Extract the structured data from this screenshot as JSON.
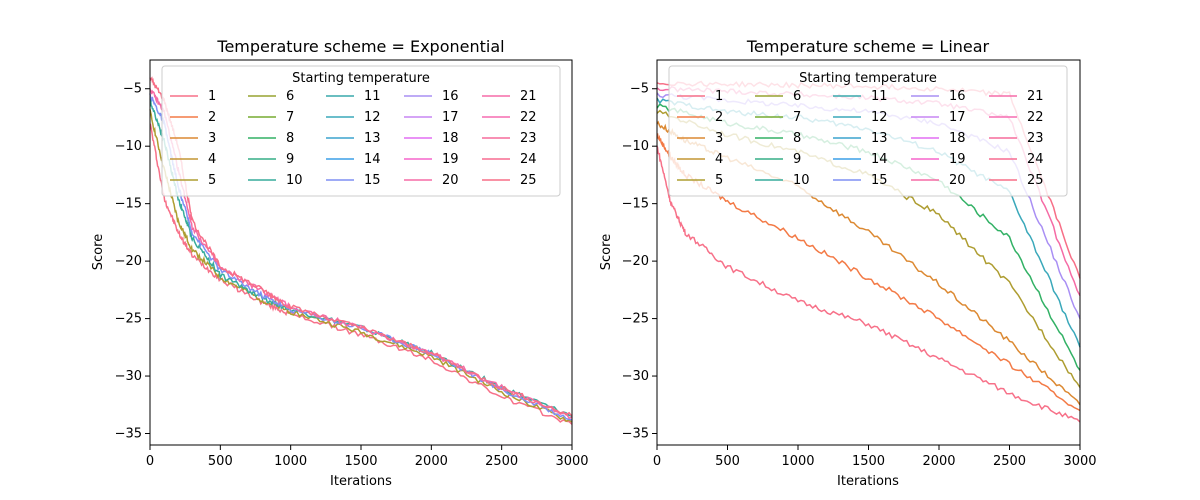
{
  "figure": {
    "legend_title": "Starting temperature"
  },
  "series_colors": [
    "#f77189",
    "#f37a46",
    "#dc8932",
    "#c39533",
    "#ae9d31",
    "#97a431",
    "#77ab31",
    "#32b165",
    "#35ae86",
    "#37ac9c",
    "#39a9ab",
    "#3aa8ba",
    "#3ca4ce",
    "#3b9fe7",
    "#7e8ff4",
    "#a98ff4",
    "#c785f3",
    "#e26ff4",
    "#f565cc",
    "#f56ba5",
    "#f56ba8",
    "#f66bb1",
    "#f66c9c",
    "#f76c91",
    "#f76f87"
  ],
  "chart_data": [
    {
      "type": "line",
      "title": "Temperature scheme = Exponential",
      "xlabel": "Iterations",
      "ylabel": "Score",
      "xlim": [
        0,
        3000
      ],
      "ylim": [
        -36,
        -2.5
      ],
      "xticks": [
        0,
        500,
        1000,
        1500,
        2000,
        2500,
        3000
      ],
      "yticks": [
        -5,
        -10,
        -15,
        -20,
        -25,
        -30,
        -35
      ],
      "legend_position": "top-right",
      "legend_entries": [
        "1",
        "2",
        "3",
        "4",
        "5",
        "6",
        "7",
        "8",
        "9",
        "10",
        "11",
        "12",
        "13",
        "14",
        "15",
        "16",
        "17",
        "18",
        "19",
        "20",
        "21",
        "22",
        "23",
        "24",
        "25"
      ],
      "series": [
        {
          "name": "1",
          "x": [
            0,
            100,
            200,
            300,
            500,
            800,
            1000,
            1500,
            2000,
            2500,
            3000
          ],
          "y": [
            -8,
            -14.5,
            -17.5,
            -19.5,
            -21.6,
            -23.6,
            -24.6,
            -26.4,
            -28.6,
            -31.8,
            -34.2
          ]
        },
        {
          "name": "5",
          "x": [
            0,
            100,
            200,
            300,
            500,
            800,
            1000,
            1500,
            2000,
            2500,
            3000
          ],
          "y": [
            -7,
            -12,
            -16.5,
            -19,
            -21.4,
            -23.4,
            -24.4,
            -26.2,
            -28.3,
            -31.4,
            -34
          ]
        },
        {
          "name": "10",
          "x": [
            0,
            100,
            200,
            300,
            500,
            800,
            1000,
            1500,
            2000,
            2500,
            3000
          ],
          "y": [
            -6,
            -9.5,
            -14.5,
            -18,
            -21.2,
            -23.2,
            -24.2,
            -25.8,
            -28,
            -31,
            -33.5
          ]
        },
        {
          "name": "15",
          "x": [
            0,
            100,
            200,
            300,
            500,
            800,
            1000,
            1500,
            2000,
            2500,
            3000
          ],
          "y": [
            -5.5,
            -8,
            -13.5,
            -17.5,
            -20.8,
            -23,
            -24.2,
            -25.8,
            -28,
            -31.2,
            -33.8
          ]
        },
        {
          "name": "20",
          "x": [
            0,
            100,
            200,
            300,
            500,
            800,
            1000,
            1500,
            2000,
            2500,
            3000
          ],
          "y": [
            -5,
            -7,
            -12,
            -17,
            -20.6,
            -22.6,
            -24,
            -25.8,
            -28,
            -31,
            -33.6
          ]
        },
        {
          "name": "25",
          "x": [
            0,
            100,
            200,
            300,
            500,
            800,
            1000,
            1500,
            2000,
            2500,
            3000
          ],
          "y": [
            -4,
            -6,
            -10,
            -16.5,
            -20.5,
            -22.5,
            -24,
            -25.8,
            -28,
            -31,
            -33.5
          ]
        }
      ]
    },
    {
      "type": "line",
      "title": "Temperature scheme = Linear",
      "xlabel": "Iterations",
      "ylabel": "Score",
      "xlim": [
        0,
        3000
      ],
      "ylim": [
        -36,
        -2.5
      ],
      "xticks": [
        0,
        500,
        1000,
        1500,
        2000,
        2500,
        3000
      ],
      "yticks": [
        -5,
        -10,
        -15,
        -20,
        -25,
        -30,
        -35
      ],
      "legend_position": "top-right",
      "legend_entries": [
        "1",
        "2",
        "3",
        "4",
        "5",
        "6",
        "7",
        "8",
        "9",
        "10",
        "11",
        "12",
        "13",
        "14",
        "15",
        "16",
        "17",
        "18",
        "19",
        "20",
        "21",
        "22",
        "23",
        "24",
        "25"
      ],
      "series": [
        {
          "name": "1",
          "x": [
            0,
            100,
            200,
            500,
            1000,
            1500,
            2000,
            2500,
            3000
          ],
          "y": [
            -10,
            -15,
            -17.5,
            -20.5,
            -23.5,
            -25.5,
            -28.5,
            -31.5,
            -34
          ]
        },
        {
          "name": "2",
          "x": [
            0,
            100,
            200,
            500,
            1000,
            1500,
            2000,
            2500,
            3000
          ],
          "y": [
            -9,
            -11,
            -12.5,
            -14.8,
            -18,
            -21.5,
            -25,
            -29,
            -33
          ]
        },
        {
          "name": "3",
          "x": [
            0,
            200,
            500,
            1000,
            1500,
            2000,
            2500,
            3000
          ],
          "y": [
            -8,
            -9.5,
            -11,
            -13.5,
            -17.5,
            -22,
            -27,
            -32.5
          ]
        },
        {
          "name": "5",
          "x": [
            0,
            500,
            1000,
            1500,
            2000,
            2500,
            3000
          ],
          "y": [
            -7,
            -9,
            -10.5,
            -12.5,
            -16,
            -22,
            -31
          ]
        },
        {
          "name": "8",
          "x": [
            0,
            500,
            1000,
            1500,
            2000,
            2500,
            3000
          ],
          "y": [
            -6.5,
            -8,
            -9,
            -10.5,
            -13,
            -18,
            -29.5
          ]
        },
        {
          "name": "12",
          "x": [
            0,
            500,
            1000,
            1500,
            2000,
            2500,
            3000
          ],
          "y": [
            -6,
            -7,
            -7.5,
            -8.5,
            -10.5,
            -14,
            -27.5
          ]
        },
        {
          "name": "16",
          "x": [
            0,
            500,
            1000,
            1500,
            2000,
            2500,
            3000
          ],
          "y": [
            -5.5,
            -6,
            -6.5,
            -7,
            -8,
            -10.5,
            -25
          ]
        },
        {
          "name": "20",
          "x": [
            0,
            500,
            1000,
            1500,
            2000,
            2500,
            3000
          ],
          "y": [
            -5,
            -5.2,
            -5.5,
            -5.8,
            -6.3,
            -7.5,
            -23
          ]
        },
        {
          "name": "25",
          "x": [
            0,
            500,
            1000,
            1500,
            2000,
            2500,
            3000
          ],
          "y": [
            -4.5,
            -4.6,
            -4.7,
            -4.8,
            -5,
            -5.5,
            -21.5
          ]
        }
      ]
    }
  ]
}
